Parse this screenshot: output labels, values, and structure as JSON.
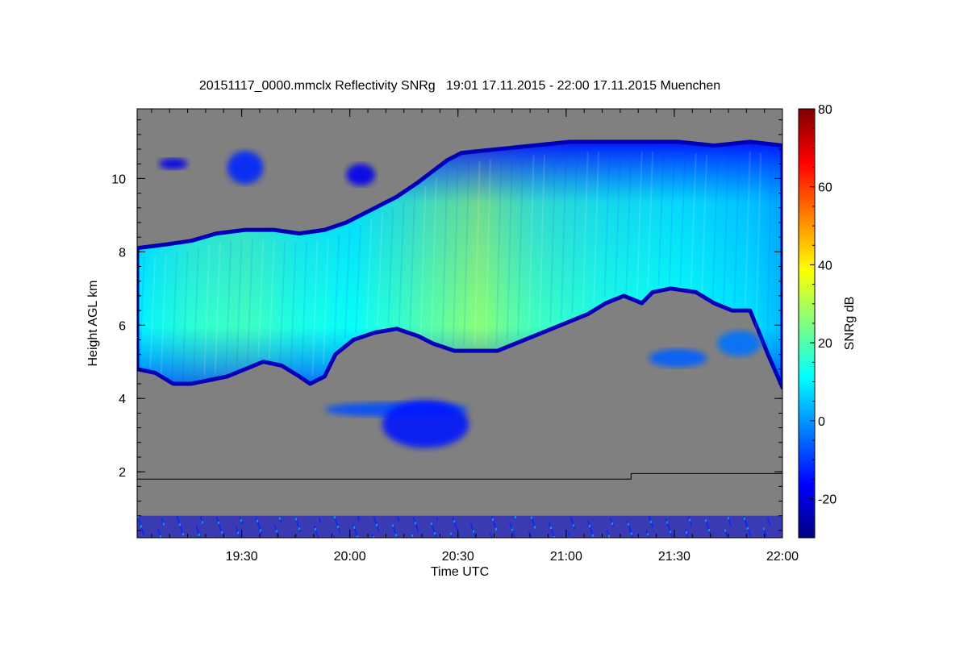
{
  "chart_data": {
    "type": "heatmap",
    "title": "20151117_0000.mmclx Reflectivity SNRg   19:01 17.11.2015 - 22:00 17.11.2015 Muenchen",
    "xlabel": "Time UTC",
    "ylabel": "Height AGL km",
    "colorbar_label": "SNRg dB",
    "x_range": [
      "19:01",
      "22:00"
    ],
    "y_range_km": [
      0.2,
      11.9
    ],
    "color_range_db": [
      -30,
      80
    ],
    "x_ticks": [
      {
        "label": "19:30",
        "minutes": 29
      },
      {
        "label": "20:00",
        "minutes": 59
      },
      {
        "label": "20:30",
        "minutes": 89
      },
      {
        "label": "21:00",
        "minutes": 119
      },
      {
        "label": "21:30",
        "minutes": 149
      },
      {
        "label": "22:00",
        "minutes": 179
      }
    ],
    "y_ticks": [
      2,
      4,
      6,
      8,
      10
    ],
    "colorbar_ticks": [
      -20,
      0,
      20,
      40,
      60,
      80
    ],
    "background_color": "#808080",
    "colormap": [
      "#000083",
      "#0000ff",
      "#0080ff",
      "#00ffff",
      "#80ff80",
      "#ffff00",
      "#ff8000",
      "#ff0000",
      "#800000"
    ],
    "layers": [
      {
        "name": "main cirrus layer",
        "top_km": [
          [
            0,
            8.1
          ],
          [
            8,
            8.2
          ],
          [
            15,
            8.3
          ],
          [
            22,
            8.5
          ],
          [
            30,
            8.6
          ],
          [
            38,
            8.6
          ],
          [
            45,
            8.5
          ],
          [
            52,
            8.6
          ],
          [
            58,
            8.8
          ],
          [
            66,
            9.2
          ],
          [
            72,
            9.5
          ],
          [
            78,
            9.9
          ],
          [
            82,
            10.2
          ],
          [
            86,
            10.5
          ],
          [
            90,
            10.7
          ],
          [
            100,
            10.8
          ],
          [
            110,
            10.9
          ],
          [
            120,
            11.0
          ],
          [
            130,
            11.0
          ],
          [
            140,
            11.0
          ],
          [
            150,
            11.0
          ],
          [
            160,
            10.9
          ],
          [
            170,
            11.0
          ],
          [
            179,
            10.9
          ]
        ],
        "bottom_km": [
          [
            0,
            4.8
          ],
          [
            5,
            4.7
          ],
          [
            10,
            4.4
          ],
          [
            15,
            4.4
          ],
          [
            20,
            4.5
          ],
          [
            25,
            4.6
          ],
          [
            30,
            4.8
          ],
          [
            35,
            5.0
          ],
          [
            40,
            4.9
          ],
          [
            45,
            4.6
          ],
          [
            48,
            4.4
          ],
          [
            52,
            4.6
          ],
          [
            55,
            5.2
          ],
          [
            60,
            5.6
          ],
          [
            66,
            5.8
          ],
          [
            72,
            5.9
          ],
          [
            78,
            5.7
          ],
          [
            82,
            5.5
          ],
          [
            88,
            5.3
          ],
          [
            95,
            5.3
          ],
          [
            100,
            5.3
          ],
          [
            105,
            5.5
          ],
          [
            110,
            5.7
          ],
          [
            115,
            5.9
          ],
          [
            120,
            6.1
          ],
          [
            125,
            6.3
          ],
          [
            130,
            6.6
          ],
          [
            135,
            6.8
          ],
          [
            140,
            6.6
          ],
          [
            143,
            6.9
          ],
          [
            148,
            7.0
          ],
          [
            155,
            6.9
          ],
          [
            160,
            6.6
          ],
          [
            165,
            6.4
          ],
          [
            170,
            6.4
          ],
          [
            175,
            5.2
          ],
          [
            179,
            4.3
          ]
        ],
        "core_db": [
          [
            0,
            10
          ],
          [
            15,
            16
          ],
          [
            30,
            18
          ],
          [
            45,
            14
          ],
          [
            60,
            12
          ],
          [
            80,
            20
          ],
          [
            95,
            26
          ],
          [
            110,
            18
          ],
          [
            130,
            14
          ],
          [
            150,
            12
          ],
          [
            170,
            8
          ],
          [
            179,
            4
          ]
        ]
      },
      {
        "name": "upper ice patches",
        "patches": [
          {
            "center_minutes": 30,
            "center_km": 10.3,
            "width_minutes": 10,
            "height_km": 0.9,
            "db": -12
          },
          {
            "center_minutes": 62,
            "center_km": 10.1,
            "width_minutes": 8,
            "height_km": 0.6,
            "db": -18
          },
          {
            "center_minutes": 10,
            "center_km": 10.4,
            "width_minutes": 8,
            "height_km": 0.3,
            "db": -18
          }
        ]
      },
      {
        "name": "mid-level virga",
        "patches": [
          {
            "center_minutes": 72,
            "center_km": 3.7,
            "width_minutes": 40,
            "height_km": 0.4,
            "db": -8
          },
          {
            "center_minutes": 80,
            "center_km": 3.3,
            "width_minutes": 24,
            "height_km": 1.3,
            "db": -14
          }
        ]
      },
      {
        "name": "low detached layer",
        "patches": [
          {
            "center_minutes": 150,
            "center_km": 5.1,
            "width_minutes": 16,
            "height_km": 0.5,
            "db": -6
          },
          {
            "center_minutes": 167,
            "center_km": 5.5,
            "width_minutes": 12,
            "height_km": 0.7,
            "db": -4
          }
        ]
      },
      {
        "name": "near-surface clutter",
        "bottom_km": 0.2,
        "top_km": 0.8,
        "db": -20
      }
    ],
    "boundary_line_km": [
      [
        0,
        1.8
      ],
      [
        137,
        1.8
      ],
      [
        137,
        1.95
      ],
      [
        179,
        1.95
      ]
    ]
  }
}
